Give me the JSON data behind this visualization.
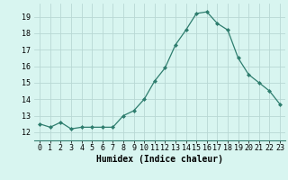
{
  "x": [
    0,
    1,
    2,
    3,
    4,
    5,
    6,
    7,
    8,
    9,
    10,
    11,
    12,
    13,
    14,
    15,
    16,
    17,
    18,
    19,
    20,
    21,
    22,
    23
  ],
  "y": [
    12.5,
    12.3,
    12.6,
    12.2,
    12.3,
    12.3,
    12.3,
    12.3,
    13.0,
    13.3,
    14.0,
    15.1,
    15.9,
    17.3,
    18.2,
    19.2,
    19.3,
    18.6,
    18.2,
    16.5,
    15.5,
    15.0,
    14.5,
    13.7
  ],
  "xlabel": "Humidex (Indice chaleur)",
  "xlim": [
    -0.5,
    23.5
  ],
  "ylim": [
    11.5,
    19.8
  ],
  "yticks": [
    12,
    13,
    14,
    15,
    16,
    17,
    18,
    19
  ],
  "xticks": [
    0,
    1,
    2,
    3,
    4,
    5,
    6,
    7,
    8,
    9,
    10,
    11,
    12,
    13,
    14,
    15,
    16,
    17,
    18,
    19,
    20,
    21,
    22,
    23
  ],
  "line_color": "#2e7d6e",
  "marker": "D",
  "marker_size": 2.0,
  "bg_color": "#d8f5f0",
  "grid_color": "#b8d8d4",
  "tick_fontsize": 6.0,
  "xlabel_fontsize": 7.0
}
